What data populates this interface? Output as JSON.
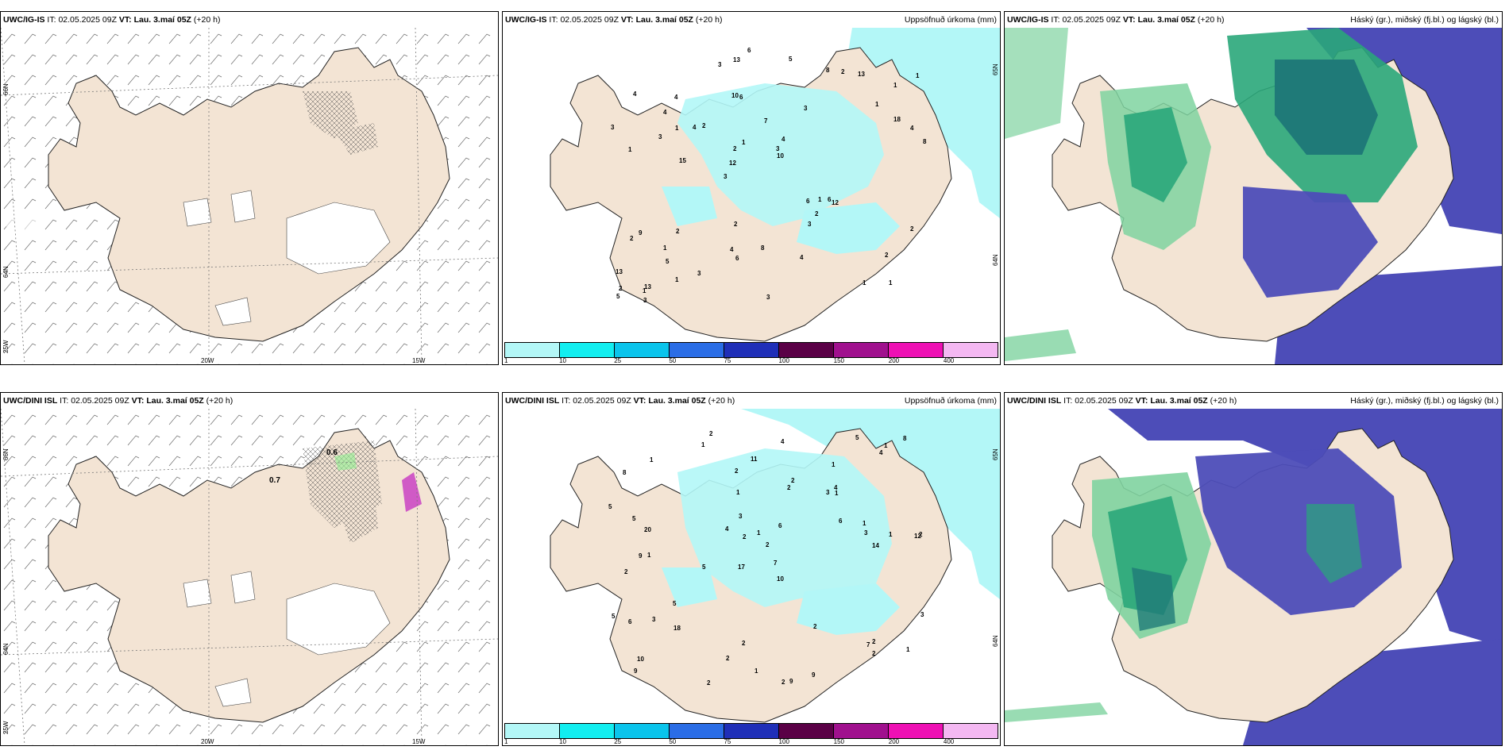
{
  "colors": {
    "land": "#f3e4d4",
    "precip_light": "#b3f7f7",
    "precip_mid": "#8be8f0",
    "cloud_high": "#2aa77a",
    "cloud_high_dark": "#1f7a78",
    "cloud_mid": "#7fd3a0",
    "cloud_low": "#4d4db8",
    "cloud_low_light": "#6f6fd0"
  },
  "panels": [
    {
      "model": "UWC/IG-IS",
      "it_label": "IT:",
      "it_value": "02.05.2025 09Z",
      "vt_label": "VT:",
      "vt_value": "Lau. 3.maí 05Z",
      "lead": "(+20 h)",
      "right_title": "",
      "type": "wind",
      "lat_labels": [
        "66N",
        "64N",
        "25W"
      ],
      "lon_labels": [
        "20W",
        "15W"
      ]
    },
    {
      "model": "UWC/IG-IS",
      "it_label": "IT:",
      "it_value": "02.05.2025 09Z",
      "vt_label": "VT:",
      "vt_value": "Lau. 3.maí 05Z",
      "lead": "(+20 h)",
      "right_title": "Uppsöfnuð úrkoma (mm)",
      "type": "precip",
      "lat_labels": [
        "65N",
        "64N"
      ],
      "precip_values": [
        "1",
        "1",
        "1",
        "3",
        "3",
        "13",
        "10",
        "7",
        "9",
        "2",
        "13",
        "5",
        "6",
        "4",
        "12",
        "4",
        "13",
        "8",
        "6",
        "18",
        "12",
        "4",
        "2",
        "4",
        "8",
        "2",
        "1",
        "2",
        "6",
        "3",
        "4",
        "3",
        "3",
        "1",
        "4",
        "3",
        "2",
        "6",
        "10",
        "2",
        "1",
        "1",
        "2",
        "4",
        "1",
        "3",
        "5",
        "8",
        "13",
        "6",
        "15",
        "3",
        "4",
        "2",
        "1",
        "5",
        "3",
        "1",
        "2",
        "2",
        "3",
        "1",
        "1"
      ]
    },
    {
      "model": "UWC/IG-IS",
      "it_label": "IT:",
      "it_value": "02.05.2025 09Z",
      "vt_label": "VT:",
      "vt_value": "Lau. 3.maí 05Z",
      "lead": "(+20 h)",
      "right_title": "Háský (gr.), miðský (fj.bl.) og lágský (bl.)",
      "type": "cloud"
    },
    {
      "model": "UWC/DINI ISL",
      "it_label": "IT:",
      "it_value": "02.05.2025 09Z",
      "vt_label": "VT:",
      "vt_value": "Lau. 3.maí 05Z",
      "lead": "(+20 h)",
      "right_title": "",
      "type": "wind",
      "lat_labels": [
        "66N",
        "64N",
        "25W"
      ],
      "lon_labels": [
        "20W",
        "15W"
      ],
      "annotations": [
        "0.6",
        "0.7"
      ]
    },
    {
      "model": "UWC/DINI ISL",
      "it_label": "IT:",
      "it_value": "02.05.2025 09Z",
      "vt_label": "VT:",
      "vt_value": "Lau. 3.maí 05Z",
      "lead": "(+20 h)",
      "right_title": "Uppsöfnuð úrkoma (mm)",
      "type": "precip",
      "lat_labels": [
        "65N",
        "64N"
      ],
      "precip_values": [
        "2",
        "1",
        "12",
        "17",
        "10",
        "1",
        "8",
        "3",
        "2",
        "2",
        "2",
        "9",
        "1",
        "5",
        "2",
        "9",
        "2",
        "5",
        "6",
        "5",
        "20",
        "9",
        "2",
        "1",
        "5",
        "5",
        "2",
        "3",
        "2",
        "6",
        "7",
        "2",
        "3",
        "4",
        "2",
        "3",
        "1",
        "2",
        "8",
        "11",
        "10",
        "2",
        "9",
        "1",
        "1",
        "1",
        "2",
        "4",
        "5",
        "7",
        "2",
        "14",
        "6",
        "4",
        "4",
        "18",
        "3",
        "1",
        "1",
        "1",
        "1"
      ]
    },
    {
      "model": "UWC/DINI ISL",
      "it_label": "IT:",
      "it_value": "02.05.2025 09Z",
      "vt_label": "VT:",
      "vt_value": "Lau. 3.maí 05Z",
      "lead": "(+20 h)",
      "right_title": "Háský (gr.), miðský (fj.bl.) og lágský (bl.)",
      "type": "cloud"
    }
  ],
  "colorbar": {
    "colors": [
      "#b3f7f7",
      "#12eef0",
      "#0ac4ec",
      "#2a6de6",
      "#1f2fb8",
      "#5a0046",
      "#a0108e",
      "#ee10b4",
      "#f4b8f2"
    ],
    "labels": [
      "1",
      "10",
      "25",
      "50",
      "75",
      "100",
      "150",
      "200",
      "400"
    ]
  }
}
